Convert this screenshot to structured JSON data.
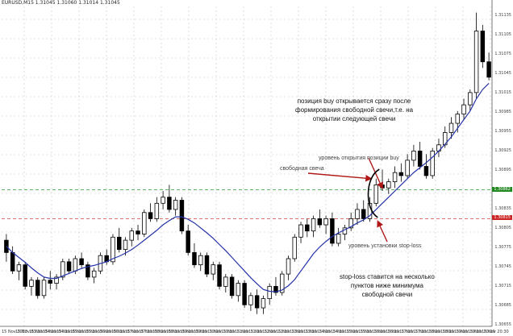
{
  "window": {
    "title": "EURUSD,M15 1.31045 1.31060 1.31014 1.31045"
  },
  "annotations": {
    "buy_position_lines": [
      "позиция buy открывается сразу после",
      "формирования свободной свечи,т.е. на",
      "открытии следующей свечи"
    ],
    "entry_level": "уровень открытия позиции buy",
    "free_candle": "свободная свеча",
    "stop_level": "уровень установки stop-loss",
    "stop_note_lines": [
      "stop-loss ставится на несколько",
      "пунктов ниже минимума",
      "свободной свечи"
    ]
  },
  "price_axis": {
    "labels": [
      "1.31135",
      "1.31105",
      "1.31075",
      "1.31045",
      "1.31015",
      "1.30985",
      "1.30955",
      "1.30925",
      "1.30895",
      "1.30865",
      "1.30835",
      "1.30805",
      "1.30775",
      "1.30745",
      "1.30715",
      "1.30685",
      "1.30655"
    ],
    "entry_tag": "1.30862",
    "stop_tag": "1.30815"
  },
  "time_axis": {
    "labels": [
      "15 Nov 2013",
      "15 Nov 03:30",
      "15 Nov 04:00",
      "15 Nov 04:30",
      "15 Nov 05:00",
      "15 Nov 05:30",
      "15 Nov 06:00",
      "15 Nov 06:30",
      "15 Nov 07:00",
      "15 Nov 07:30",
      "15 Nov 08:00",
      "15 Nov 08:30",
      "15 Nov 09:00",
      "15 Nov 09:30",
      "15 Nov 10:00",
      "15 Nov 10:30",
      "15 Nov 11:00",
      "15 Nov 11:30",
      "15 Nov 12:00",
      "15 Nov 12:30",
      "15 Nov 13:00",
      "15 Nov 13:30",
      "15 Nov 14:00",
      "15 Nov 14:30",
      "15 Nov 15:00",
      "15 Nov 15:30",
      "15 Nov 16:00",
      "15 Nov 16:30",
      "15 Nov 17:00",
      "15 Nov 17:30",
      "15 Nov 18:00",
      "15 Nov 18:30",
      "15 Nov 19:00",
      "15 Nov 19:30",
      "15 Nov 20:00",
      "15 Nov 20:30"
    ]
  },
  "colors": {
    "ma_line": "#2433a8",
    "arrow": "#b01818",
    "entry_line": "#2d9a2d",
    "stop_line": "#d04040",
    "grid": "#c8c8c8",
    "entry_tag_bg": "#228822",
    "stop_tag_bg": "#cc2222"
  },
  "chart_data": {
    "type": "candlestick",
    "candles": [
      [
        1.3078,
        1.3079,
        1.30745,
        1.3076
      ],
      [
        1.3076,
        1.3077,
        1.30725,
        1.3073
      ],
      [
        1.3073,
        1.30745,
        1.30715,
        1.3074
      ],
      [
        1.3074,
        1.30745,
        1.307,
        1.30705
      ],
      [
        1.30705,
        1.3072,
        1.3069,
        1.30715
      ],
      [
        1.30715,
        1.3072,
        1.30685,
        1.3069
      ],
      [
        1.3069,
        1.3072,
        1.30685,
        1.30715
      ],
      [
        1.30715,
        1.3073,
        1.307,
        1.3071
      ],
      [
        1.3071,
        1.30725,
        1.307,
        1.3072
      ],
      [
        1.3072,
        1.3075,
        1.30715,
        1.30745
      ],
      [
        1.30745,
        1.3075,
        1.30725,
        1.3073
      ],
      [
        1.3073,
        1.30755,
        1.30725,
        1.3075
      ],
      [
        1.3075,
        1.3076,
        1.30735,
        1.3074
      ],
      [
        1.3074,
        1.30745,
        1.30715,
        1.3072
      ],
      [
        1.3072,
        1.30735,
        1.3071,
        1.3073
      ],
      [
        1.3073,
        1.3076,
        1.30725,
        1.30755
      ],
      [
        1.30755,
        1.30765,
        1.3074,
        1.30745
      ],
      [
        1.30745,
        1.3079,
        1.3074,
        1.30785
      ],
      [
        1.30785,
        1.308,
        1.3076,
        1.30765
      ],
      [
        1.30765,
        1.30785,
        1.30755,
        1.3078
      ],
      [
        1.3078,
        1.308,
        1.3077,
        1.30795
      ],
      [
        1.30795,
        1.30805,
        1.3078,
        1.3079
      ],
      [
        1.3079,
        1.3083,
        1.30785,
        1.30825
      ],
      [
        1.30825,
        1.3084,
        1.3081,
        1.30815
      ],
      [
        1.30815,
        1.3085,
        1.3081,
        1.3084
      ],
      [
        1.3084,
        1.3086,
        1.3083,
        1.3085
      ],
      [
        1.3085,
        1.3087,
        1.30825,
        1.3083
      ],
      [
        1.3083,
        1.3085,
        1.3082,
        1.30845
      ],
      [
        1.30845,
        1.3085,
        1.3079,
        1.30795
      ],
      [
        1.30795,
        1.30805,
        1.30755,
        1.3076
      ],
      [
        1.3076,
        1.30775,
        1.30735,
        1.3074
      ],
      [
        1.3074,
        1.3076,
        1.3073,
        1.30755
      ],
      [
        1.30755,
        1.3076,
        1.3072,
        1.30725
      ],
      [
        1.30725,
        1.30745,
        1.30715,
        1.3074
      ],
      [
        1.3074,
        1.30745,
        1.307,
        1.30705
      ],
      [
        1.30705,
        1.30725,
        1.30695,
        1.3072
      ],
      [
        1.3072,
        1.30725,
        1.30685,
        1.3069
      ],
      [
        1.3069,
        1.30715,
        1.3068,
        1.3071
      ],
      [
        1.3071,
        1.30715,
        1.3067,
        1.30675
      ],
      [
        1.30675,
        1.30695,
        1.30665,
        1.3069
      ],
      [
        1.3069,
        1.307,
        1.3066,
        1.3067
      ],
      [
        1.3067,
        1.3069,
        1.3066,
        1.30685
      ],
      [
        1.30685,
        1.3071,
        1.30675,
        1.30705
      ],
      [
        1.30705,
        1.3072,
        1.3069,
        1.30695
      ],
      [
        1.30695,
        1.3073,
        1.3069,
        1.30725
      ],
      [
        1.30725,
        1.30755,
        1.30715,
        1.3075
      ],
      [
        1.3075,
        1.3079,
        1.30745,
        1.30785
      ],
      [
        1.30785,
        1.3081,
        1.30775,
        1.30805
      ],
      [
        1.30805,
        1.30815,
        1.30785,
        1.30795
      ],
      [
        1.30795,
        1.3082,
        1.30785,
        1.30815
      ],
      [
        1.30815,
        1.3083,
        1.308,
        1.30805
      ],
      [
        1.30805,
        1.3082,
        1.3079,
        1.30815
      ],
      [
        1.30815,
        1.30825,
        1.3077,
        1.30775
      ],
      [
        1.30775,
        1.308,
        1.3077,
        1.3079
      ],
      [
        1.3079,
        1.30805,
        1.3078,
        1.308
      ],
      [
        1.308,
        1.30825,
        1.30795,
        1.30815
      ],
      [
        1.30815,
        1.3084,
        1.30805,
        1.3083
      ],
      [
        1.3083,
        1.30845,
        1.3081,
        1.30815
      ],
      [
        1.30815,
        1.3085,
        1.3081,
        1.3084
      ],
      [
        1.3084,
        1.3088,
        1.30835,
        1.3087
      ],
      [
        1.3087,
        1.30895,
        1.3086,
        1.30865
      ],
      [
        1.30865,
        1.3088,
        1.30855,
        1.30875
      ],
      [
        1.30875,
        1.309,
        1.30865,
        1.3089
      ],
      [
        1.3089,
        1.30905,
        1.30875,
        1.30885
      ],
      [
        1.30885,
        1.3092,
        1.3088,
        1.3091
      ],
      [
        1.3091,
        1.30935,
        1.309,
        1.30925
      ],
      [
        1.30925,
        1.3094,
        1.30895,
        1.309
      ],
      [
        1.309,
        1.3092,
        1.3088,
        1.30885
      ],
      [
        1.30885,
        1.3093,
        1.3088,
        1.30925
      ],
      [
        1.30925,
        1.30945,
        1.30915,
        1.30935
      ],
      [
        1.30935,
        1.30965,
        1.3093,
        1.30955
      ],
      [
        1.30955,
        1.3098,
        1.30945,
        1.3097
      ],
      [
        1.3097,
        1.3099,
        1.30955,
        1.30985
      ],
      [
        1.30985,
        1.3101,
        1.30975,
        1.31
      ],
      [
        1.31,
        1.31025,
        1.3099,
        1.3102
      ],
      [
        1.3102,
        1.3115,
        1.3101,
        1.3112
      ],
      [
        1.3112,
        1.3113,
        1.3106,
        1.3107
      ],
      [
        1.3107,
        1.31085,
        1.3104,
        1.31045
      ]
    ],
    "ma": [
      1.3077,
      1.3076,
      1.30752,
      1.30744,
      1.30735,
      1.30727,
      1.3072,
      1.30718,
      1.30718,
      1.30722,
      1.30726,
      1.3073,
      1.30734,
      1.30737,
      1.30739,
      1.30742,
      1.30745,
      1.3075,
      1.30754,
      1.30759,
      1.30765,
      1.30772,
      1.3078,
      1.30788,
      1.30796,
      1.30805,
      1.30812,
      1.30818,
      1.30818,
      1.30814,
      1.30808,
      1.308,
      1.30792,
      1.30783,
      1.30773,
      1.30763,
      1.30752,
      1.30741,
      1.3073,
      1.30719,
      1.30709,
      1.307,
      1.30697,
      1.30696,
      1.30699,
      1.30706,
      1.30716,
      1.3073,
      1.30744,
      1.30758,
      1.30769,
      1.30778,
      1.30786,
      1.30792,
      1.30797,
      1.30802,
      1.30808,
      1.30813,
      1.3082,
      1.3083,
      1.3084,
      1.3085,
      1.3086,
      1.3087,
      1.3088,
      1.3089,
      1.30898,
      1.30906,
      1.30915,
      1.30925,
      1.30936,
      1.30948,
      1.30962,
      1.30976,
      1.3099,
      1.3101,
      1.31025,
      1.31035
    ],
    "ylim": [
      1.3064,
      1.3116
    ],
    "entry_price": 1.30862,
    "stop_price": 1.30815
  }
}
